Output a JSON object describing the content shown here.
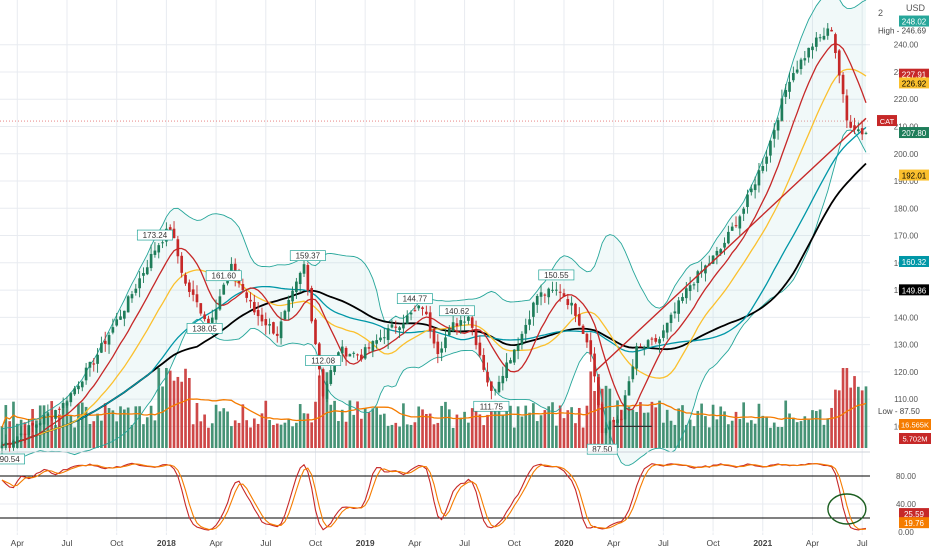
{
  "chart_data": {
    "type": "candlestick",
    "symbol": "CAT",
    "currency": "USD",
    "price_axis": {
      "min": 95,
      "max": 252,
      "ticks": [
        100,
        110,
        120,
        130,
        140,
        150,
        160,
        170,
        180,
        190,
        200,
        210,
        220,
        230,
        240
      ]
    },
    "price_axis_top_label": "2",
    "time_axis": {
      "labels": [
        {
          "t": 4,
          "label": "Apr"
        },
        {
          "t": 17,
          "label": "Jul"
        },
        {
          "t": 30,
          "label": "Oct"
        },
        {
          "t": 43,
          "label": "2018"
        },
        {
          "t": 56,
          "label": "Apr"
        },
        {
          "t": 69,
          "label": "Jul"
        },
        {
          "t": 82,
          "label": "Oct"
        },
        {
          "t": 95,
          "label": "2019"
        },
        {
          "t": 108,
          "label": "Apr"
        },
        {
          "t": 121,
          "label": "Jul"
        },
        {
          "t": 134,
          "label": "Oct"
        },
        {
          "t": 147,
          "label": "2020"
        },
        {
          "t": 160,
          "label": "Apr"
        },
        {
          "t": 173,
          "label": "Jul"
        },
        {
          "t": 186,
          "label": "Oct"
        },
        {
          "t": 199,
          "label": "2021"
        },
        {
          "t": 212,
          "label": "Apr"
        },
        {
          "t": 225,
          "label": "Jul"
        }
      ]
    },
    "anchors": [
      [
        0,
        93
      ],
      [
        8,
        100
      ],
      [
        16,
        108
      ],
      [
        24,
        124
      ],
      [
        33,
        146
      ],
      [
        40,
        165
      ],
      [
        44,
        173
      ],
      [
        48,
        152
      ],
      [
        54,
        138
      ],
      [
        60,
        158
      ],
      [
        66,
        142
      ],
      [
        72,
        134
      ],
      [
        79,
        159
      ],
      [
        84,
        112
      ],
      [
        88,
        128
      ],
      [
        94,
        126
      ],
      [
        100,
        134
      ],
      [
        110,
        144
      ],
      [
        114,
        128
      ],
      [
        118,
        137
      ],
      [
        122,
        141
      ],
      [
        128,
        112
      ],
      [
        136,
        134
      ],
      [
        140,
        148
      ],
      [
        146,
        150
      ],
      [
        150,
        142
      ],
      [
        154,
        128
      ],
      [
        157,
        98
      ],
      [
        162,
        104
      ],
      [
        166,
        128
      ],
      [
        172,
        132
      ],
      [
        180,
        152
      ],
      [
        188,
        165
      ],
      [
        194,
        180
      ],
      [
        200,
        200
      ],
      [
        206,
        228
      ],
      [
        212,
        240
      ],
      [
        217,
        246
      ],
      [
        221,
        212
      ],
      [
        225,
        208
      ]
    ],
    "moving_averages": [
      {
        "color": "#000000",
        "period": 52,
        "last": "149.86"
      },
      {
        "color": "#0097a7",
        "period": 40,
        "last": "160.32"
      },
      {
        "color": "#fbc02d",
        "period": 20,
        "last": "192.01"
      },
      {
        "color": "#c62828",
        "period": 10,
        "last": "226.92"
      }
    ],
    "bollinger": {
      "period": 20,
      "stdev": 2,
      "color": "#26a69a"
    },
    "price_labels": [
      {
        "text": "173.24",
        "x": 40
      },
      {
        "text": "161.60",
        "x": 58
      },
      {
        "text": "159.37",
        "x": 80
      },
      {
        "text": "138.05",
        "x": 53
      },
      {
        "text": "112.08",
        "x": 84
      },
      {
        "text": "144.77",
        "x": 108
      },
      {
        "text": "140.62",
        "x": 119
      },
      {
        "text": "111.75",
        "x": 128
      },
      {
        "text": "150.55",
        "x": 145
      },
      {
        "text": "87.50",
        "x": 157
      },
      {
        "text": "90.54",
        "x": 2
      }
    ],
    "right_labels": {
      "usd": "USD",
      "current": "248.02",
      "high": "High - 246.69",
      "red_level": "227.91",
      "orange_level": "226.92",
      "symbol": "CAT",
      "last_close": "207.80",
      "ma_yellow": "192.01",
      "ma_teal": "160.32",
      "ma_black": "149.86",
      "low": "Low - 87.50",
      "vol_ma": "16.565K",
      "vol": "5.702M"
    },
    "stochastic": {
      "ticks": [
        "80.00",
        "40.00",
        "0.00"
      ],
      "upper": 80,
      "lower": 20,
      "k_last": "25.59",
      "d_last": "19.76"
    }
  },
  "icons": {
    "annotation_circle": "ellipse-annotation-icon"
  }
}
